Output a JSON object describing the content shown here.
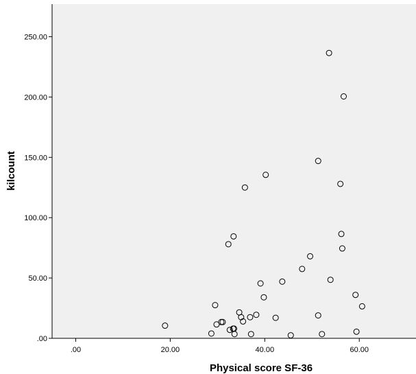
{
  "chart_data": {
    "type": "scatter",
    "title": "",
    "xlabel": "Physical score SF-36",
    "ylabel": "kilcount",
    "xlim": [
      -5,
      72
    ],
    "ylim": [
      0,
      277
    ],
    "x_ticks": [
      0,
      20,
      40,
      60
    ],
    "x_tick_labels": [
      ".00",
      "20.00",
      "40.00",
      "60.00"
    ],
    "y_ticks": [
      0,
      50,
      100,
      150,
      200,
      250
    ],
    "y_tick_labels": [
      ".00",
      "50.00",
      "100.00",
      "150.00",
      "200.00",
      "250.00"
    ],
    "grid": false,
    "legend": "none",
    "marker": "open-circle",
    "colors": {
      "plot_background": "#f0f0f0",
      "marker_stroke": "#000000",
      "axis": "#000000"
    },
    "points": [
      {
        "x": 53.6,
        "y": 236.5
      },
      {
        "x": 56.7,
        "y": 200.5
      },
      {
        "x": 51.3,
        "y": 147.0
      },
      {
        "x": 56.0,
        "y": 128.0
      },
      {
        "x": 40.2,
        "y": 135.5
      },
      {
        "x": 35.8,
        "y": 125.0
      },
      {
        "x": 56.2,
        "y": 86.5
      },
      {
        "x": 56.4,
        "y": 74.5
      },
      {
        "x": 33.4,
        "y": 84.5
      },
      {
        "x": 32.3,
        "y": 78.0
      },
      {
        "x": 49.6,
        "y": 68.0
      },
      {
        "x": 47.9,
        "y": 57.5
      },
      {
        "x": 53.9,
        "y": 48.5
      },
      {
        "x": 43.7,
        "y": 47.0
      },
      {
        "x": 39.1,
        "y": 45.5
      },
      {
        "x": 59.2,
        "y": 36.0
      },
      {
        "x": 39.8,
        "y": 34.0
      },
      {
        "x": 60.6,
        "y": 26.5
      },
      {
        "x": 29.5,
        "y": 27.5
      },
      {
        "x": 34.6,
        "y": 21.5
      },
      {
        "x": 35.0,
        "y": 17.5
      },
      {
        "x": 35.4,
        "y": 14.0
      },
      {
        "x": 38.2,
        "y": 19.5
      },
      {
        "x": 36.9,
        "y": 17.5
      },
      {
        "x": 42.3,
        "y": 17.0
      },
      {
        "x": 51.3,
        "y": 19.0
      },
      {
        "x": 30.8,
        "y": 13.5
      },
      {
        "x": 31.1,
        "y": 13.5
      },
      {
        "x": 29.8,
        "y": 11.5
      },
      {
        "x": 18.9,
        "y": 10.5
      },
      {
        "x": 33.3,
        "y": 8.0
      },
      {
        "x": 33.5,
        "y": 8.0
      },
      {
        "x": 32.6,
        "y": 7.0
      },
      {
        "x": 28.7,
        "y": 4.0
      },
      {
        "x": 33.6,
        "y": 3.5
      },
      {
        "x": 37.1,
        "y": 3.5
      },
      {
        "x": 45.5,
        "y": 2.5
      },
      {
        "x": 52.1,
        "y": 3.5
      },
      {
        "x": 59.4,
        "y": 5.5
      }
    ]
  }
}
